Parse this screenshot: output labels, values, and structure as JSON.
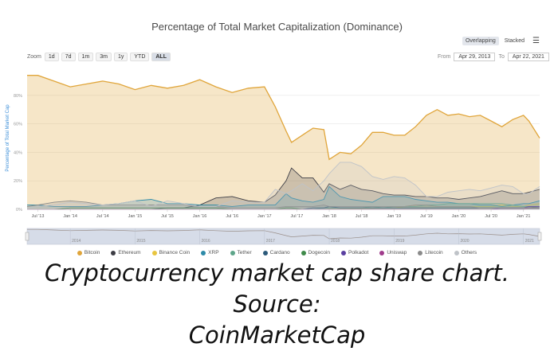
{
  "title": "Percentage of Total Market Capitalization (Dominance)",
  "toolbar": {
    "zoom_label": "Zoom",
    "zoom_buttons": [
      "1d",
      "7d",
      "1m",
      "3m",
      "1y",
      "YTD",
      "ALL"
    ],
    "active_zoom": "ALL",
    "from_label": "From",
    "from_value": "Apr 29, 2013",
    "to_label": "To",
    "to_value": "Apr 22, 2021",
    "mode_overlapping": "Overlapping",
    "mode_stacked": "Stacked",
    "menu_icon": "hamburger-menu-icon"
  },
  "caption_line1": "Cryptocurrency market cap share chart. Source:",
  "caption_line2": "CoinMarketCap",
  "chart_data": {
    "type": "area",
    "ylabel": "Percentage of Total Market Cap",
    "ylim": [
      0,
      100
    ],
    "yticks": [
      "0%",
      "20%",
      "40%",
      "60%",
      "80%"
    ],
    "xlim": [
      "2013-05",
      "2021-04"
    ],
    "xticks": [
      "Jul '13",
      "Jan '14",
      "Jul '14",
      "Jan '15",
      "Jul '15",
      "Jan '16",
      "Jul '16",
      "Jan '17",
      "Jul '17",
      "Jan '18",
      "Jul '18",
      "Jan '19",
      "Jul '19",
      "Jan '20",
      "Jul '20",
      "Jan '21"
    ],
    "navigator_ticks": [
      "2014",
      "2015",
      "2016",
      "2017",
      "2018",
      "2019",
      "2020",
      "2021"
    ],
    "legend_position": "bottom",
    "x": [
      "2013-05",
      "2013-07",
      "2013-10",
      "2014-01",
      "2014-04",
      "2014-07",
      "2014-10",
      "2015-01",
      "2015-04",
      "2015-07",
      "2015-10",
      "2016-01",
      "2016-04",
      "2016-07",
      "2016-10",
      "2017-01",
      "2017-03",
      "2017-05",
      "2017-06",
      "2017-08",
      "2017-10",
      "2017-12",
      "2018-01",
      "2018-03",
      "2018-05",
      "2018-07",
      "2018-09",
      "2018-11",
      "2019-01",
      "2019-03",
      "2019-05",
      "2019-07",
      "2019-09",
      "2019-11",
      "2020-01",
      "2020-03",
      "2020-05",
      "2020-07",
      "2020-09",
      "2020-11",
      "2021-01",
      "2021-02",
      "2021-04"
    ],
    "series": [
      {
        "name": "Bitcoin",
        "color": "#e0a53a",
        "values": [
          94,
          94,
          90,
          86,
          88,
          90,
          88,
          84,
          87,
          85,
          87,
          91,
          86,
          82,
          85,
          86,
          72,
          55,
          47,
          52,
          57,
          56,
          35,
          40,
          39,
          45,
          54,
          54,
          52,
          52,
          58,
          66,
          70,
          66,
          67,
          65,
          66,
          62,
          58,
          63,
          66,
          62,
          50
        ]
      },
      {
        "name": "Ethereum",
        "color": "#3c3c44",
        "values": [
          0,
          0,
          0,
          0,
          0,
          0,
          0,
          0,
          0,
          1,
          1,
          3,
          8,
          9,
          6,
          5,
          10,
          20,
          29,
          22,
          22,
          12,
          18,
          14,
          17,
          14,
          13,
          11,
          10,
          10,
          9,
          9,
          8,
          8,
          7,
          8,
          9,
          11,
          13,
          11,
          11,
          12,
          14
        ]
      },
      {
        "name": "Binance Coin",
        "color": "#e8c53f",
        "values": [
          0,
          0,
          0,
          0,
          0,
          0,
          0,
          0,
          0,
          0,
          0,
          0,
          0,
          0,
          0,
          0,
          0,
          0,
          0,
          0,
          0,
          0,
          0.2,
          0.4,
          0.5,
          0.6,
          0.7,
          1,
          1,
          2,
          3,
          3,
          2,
          2,
          2,
          2,
          2,
          2,
          3,
          2,
          2,
          3,
          4
        ]
      },
      {
        "name": "XRP",
        "color": "#2d8aa8",
        "values": [
          3,
          3,
          2,
          2,
          2,
          3,
          4,
          6,
          7,
          4,
          4,
          3,
          3,
          2,
          3,
          3,
          3,
          11,
          8,
          6,
          5,
          7,
          16,
          9,
          7,
          6,
          5,
          9,
          9,
          9,
          7,
          6,
          5,
          5,
          4,
          4,
          3,
          3,
          2,
          3,
          4,
          4,
          6
        ]
      },
      {
        "name": "Tether",
        "color": "#5ea58a",
        "values": [
          0,
          0,
          0,
          0,
          0,
          0,
          0,
          0,
          0,
          0,
          0,
          0,
          0,
          0,
          0,
          0,
          0,
          0,
          0,
          0,
          0,
          1,
          1,
          1,
          1,
          1,
          2,
          1,
          2,
          2,
          2,
          3,
          3,
          4,
          4,
          4,
          4,
          4,
          4,
          3,
          2,
          2,
          2
        ]
      },
      {
        "name": "Cardano",
        "color": "#2c5a7a",
        "values": [
          0,
          0,
          0,
          0,
          0,
          0,
          0,
          0,
          0,
          0,
          0,
          0,
          0,
          0,
          0,
          0,
          0,
          0,
          0,
          0,
          1,
          1,
          2,
          1,
          1,
          1,
          1,
          1,
          1,
          1,
          1,
          1,
          1,
          1,
          1,
          1,
          1,
          1,
          1,
          1,
          1,
          2,
          2
        ]
      },
      {
        "name": "Dogecoin",
        "color": "#3f8a4a",
        "values": [
          0,
          0,
          0,
          1,
          1,
          1,
          1,
          1,
          1,
          1,
          1,
          1,
          1,
          0,
          0,
          0,
          0,
          1,
          1,
          0,
          0,
          0,
          0,
          0,
          0,
          0,
          0,
          0,
          0,
          0,
          0,
          0,
          0,
          0,
          0,
          0,
          0,
          0,
          0,
          0,
          0,
          1,
          2
        ]
      },
      {
        "name": "Polkadot",
        "color": "#5a3fa0",
        "values": [
          0,
          0,
          0,
          0,
          0,
          0,
          0,
          0,
          0,
          0,
          0,
          0,
          0,
          0,
          0,
          0,
          0,
          0,
          0,
          0,
          0,
          0,
          0,
          0,
          0,
          0,
          0,
          0,
          0,
          0,
          0,
          0,
          0,
          0,
          0,
          0,
          0,
          0,
          1,
          1,
          1,
          2,
          2
        ]
      },
      {
        "name": "Uniswap",
        "color": "#a03c8c",
        "values": [
          0,
          0,
          0,
          0,
          0,
          0,
          0,
          0,
          0,
          0,
          0,
          0,
          0,
          0,
          0,
          0,
          0,
          0,
          0,
          0,
          0,
          0,
          0,
          0,
          0,
          0,
          0,
          0,
          0,
          0,
          0,
          0,
          0,
          0,
          0,
          0,
          0,
          0,
          0,
          0,
          0,
          1,
          1
        ]
      },
      {
        "name": "Litecoin",
        "color": "#8a8a8a",
        "values": [
          2,
          3,
          5,
          6,
          5,
          3,
          3,
          3,
          3,
          3,
          3,
          2,
          2,
          1,
          1,
          1,
          1,
          2,
          2,
          2,
          2,
          3,
          2,
          2,
          2,
          2,
          2,
          2,
          2,
          2,
          3,
          3,
          2,
          2,
          2,
          2,
          1,
          1,
          1,
          1,
          1,
          1,
          1
        ]
      },
      {
        "name": "Others",
        "color": "#bfc3c8",
        "values": [
          1,
          2,
          3,
          5,
          4,
          3,
          4,
          6,
          2,
          6,
          4,
          2,
          2,
          6,
          5,
          5,
          14,
          11,
          13,
          18,
          13,
          20,
          25,
          33,
          33,
          30,
          23,
          21,
          23,
          22,
          17,
          9,
          9,
          12,
          13,
          14,
          13,
          15,
          17,
          16,
          11,
          11,
          16
        ]
      }
    ]
  }
}
